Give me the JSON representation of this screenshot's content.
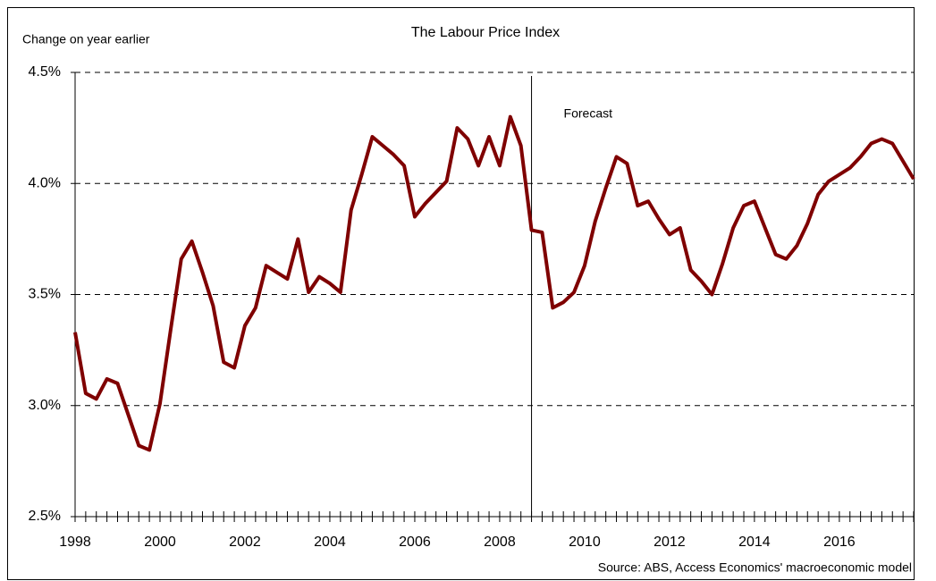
{
  "chart_data": {
    "type": "line",
    "title": "The Labour Price Index",
    "y_label": "Change on year earlier",
    "source": "Source: ABS, Access Economics' macroeconomic model",
    "annotation": "Forecast",
    "forecast_start": 2008.75,
    "x": [
      1998,
      1998.25,
      1998.5,
      1998.75,
      1999,
      1999.25,
      1999.5,
      1999.75,
      2000,
      2000.25,
      2000.5,
      2000.75,
      2001,
      2001.25,
      2001.5,
      2001.75,
      2002,
      2002.25,
      2002.5,
      2002.75,
      2003,
      2003.25,
      2003.5,
      2003.75,
      2004,
      2004.25,
      2004.5,
      2004.75,
      2005,
      2005.25,
      2005.5,
      2005.75,
      2006,
      2006.25,
      2006.5,
      2006.75,
      2007,
      2007.25,
      2007.5,
      2007.75,
      2008,
      2008.25,
      2008.5,
      2008.75,
      2009,
      2009.25,
      2009.5,
      2009.75,
      2010,
      2010.25,
      2010.5,
      2010.75,
      2011,
      2011.25,
      2011.5,
      2011.75,
      2012,
      2012.25,
      2012.5,
      2012.75,
      2013,
      2013.25,
      2013.5,
      2013.75,
      2014,
      2014.25,
      2014.5,
      2014.75,
      2015,
      2015.25,
      2015.5,
      2015.75,
      2016,
      2016.25,
      2016.5,
      2016.75,
      2017,
      2017.25,
      2017.5,
      2017.75
    ],
    "series": [
      {
        "name": "Labour Price Index",
        "color": "#7f0000",
        "values": [
          3.33,
          3.055,
          3.03,
          3.12,
          3.1,
          2.96,
          2.82,
          2.8,
          3.01,
          3.34,
          3.66,
          3.74,
          3.6,
          3.45,
          3.195,
          3.17,
          3.36,
          3.44,
          3.63,
          3.6,
          3.57,
          3.75,
          3.51,
          3.58,
          3.55,
          3.51,
          3.88,
          4.04,
          4.21,
          4.17,
          4.13,
          4.08,
          3.85,
          3.91,
          3.96,
          4.01,
          4.25,
          4.2,
          4.08,
          4.21,
          4.08,
          4.3,
          4.17,
          3.79,
          3.78,
          3.44,
          3.465,
          3.51,
          3.63,
          3.83,
          3.98,
          4.12,
          4.09,
          3.9,
          3.92,
          3.84,
          3.77,
          3.8,
          3.61,
          3.56,
          3.5,
          3.64,
          3.8,
          3.9,
          3.92,
          3.8,
          3.68,
          3.66,
          3.72,
          3.82,
          3.95,
          4.01,
          4.04,
          4.07,
          4.12,
          4.18,
          4.2,
          4.18,
          4.1,
          4.02
        ]
      }
    ],
    "xlim": [
      1998,
      2017.75
    ],
    "xticks": [
      1998,
      2000,
      2002,
      2004,
      2006,
      2008,
      2010,
      2012,
      2014,
      2016
    ],
    "ylim": [
      2.5,
      4.5
    ],
    "yticks": [
      {
        "value": 2.5,
        "label": "2.5%"
      },
      {
        "value": 3.0,
        "label": "3.0%"
      },
      {
        "value": 3.5,
        "label": "3.5%"
      },
      {
        "value": 4.0,
        "label": "4.0%"
      },
      {
        "value": 4.5,
        "label": "4.5%"
      }
    ],
    "grid": true
  }
}
